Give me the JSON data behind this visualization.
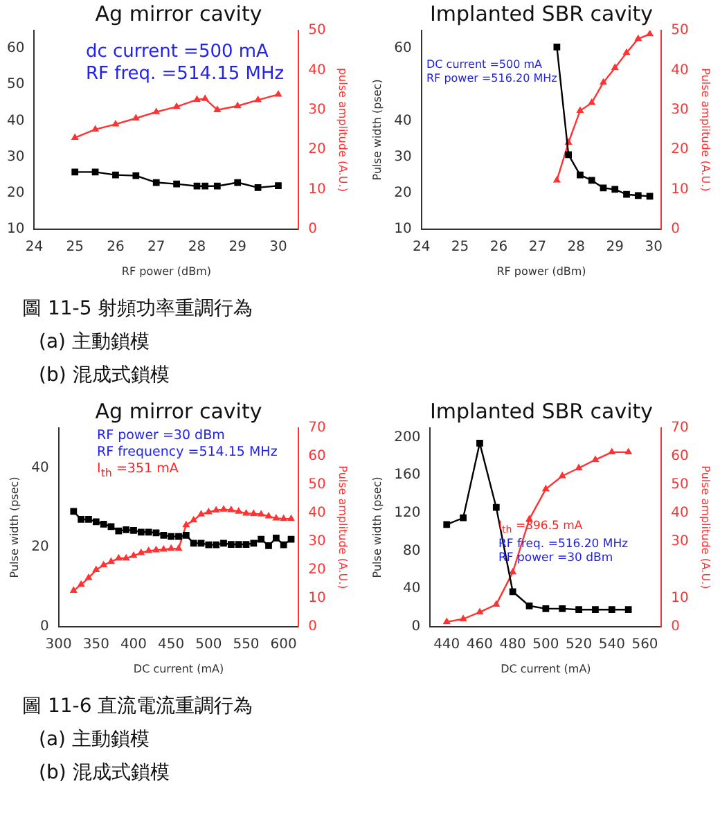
{
  "chart_data": [
    {
      "type": "line",
      "title": "Ag mirror cavity",
      "xlabel": "RF power (dBm)",
      "y2label": "pulse amplitude (A.U.)",
      "x": [
        25,
        25.5,
        26,
        26.5,
        27,
        27.5,
        28,
        28.2,
        28.5,
        29,
        29.5,
        30
      ],
      "series": [
        {
          "color": "#000000",
          "marker": "square",
          "values": [
            25.8,
            25.8,
            25.0,
            24.8,
            22.9,
            22.5,
            21.9,
            21.9,
            21.9,
            22.9,
            21.5,
            22.0
          ]
        },
        {
          "color": "#ff3333",
          "marker": "triangle",
          "axis": "y2",
          "values": [
            23.0,
            25.1,
            26.4,
            27.9,
            29.5,
            30.8,
            32.6,
            32.8,
            30.0,
            31.0,
            32.5,
            33.9
          ]
        }
      ],
      "xlim": [
        24,
        30.5
      ],
      "xticks": [
        24,
        25,
        26,
        27,
        28,
        29,
        30
      ],
      "ylim": [
        10,
        65
      ],
      "yticks": [
        10,
        20,
        30,
        40,
        50,
        60
      ],
      "y2lim": [
        0,
        50
      ],
      "y2ticks": [
        0,
        10,
        20,
        30,
        40,
        50
      ],
      "annotations": [
        "dc current =500 mA",
        "RF freq. =514.15 MHz"
      ],
      "legend": false
    },
    {
      "type": "line",
      "title": "Implanted SBR cavity",
      "xlabel": "RF power (dBm)",
      "ylabel": "Pulse width (psec)",
      "y2label": "Pulse amplitude (A.U.)",
      "x": [
        27.5,
        27.8,
        28.1,
        28.4,
        28.7,
        29,
        29.3,
        29.6,
        29.9
      ],
      "series": [
        {
          "color": "#000000",
          "marker": "square",
          "values": [
            60.4,
            30.6,
            25.0,
            23.5,
            21.4,
            21.0,
            19.6,
            19.3,
            19.1
          ]
        },
        {
          "color": "#ff3333",
          "marker": "triangle",
          "axis": "y2",
          "values": [
            12.3,
            21.8,
            29.8,
            31.8,
            36.9,
            40.6,
            44.4,
            47.9,
            49.1
          ]
        }
      ],
      "xlim": [
        24,
        30.2
      ],
      "xticks": [
        24,
        25,
        26,
        27,
        28,
        29,
        30
      ],
      "ylim": [
        10,
        65
      ],
      "yticks": [
        10,
        20,
        30,
        40,
        60
      ],
      "y2lim": [
        0,
        50
      ],
      "y2ticks": [
        0,
        10,
        20,
        30,
        40,
        50
      ],
      "annotations": [
        "DC current =500 mA",
        "RF power =516.20 MHz"
      ],
      "legend": false
    },
    {
      "type": "other",
      "annotations": [
        "圖 11-5 射頻功率重調行為",
        "(a) 主動鎖模",
        "(b) 混成式鎖模"
      ]
    },
    {
      "type": "line",
      "title": "Ag mirror cavity",
      "xlabel": "DC current (mA)",
      "ylabel": "Pulse width (psec)",
      "y2label": "Pulse amplitude (A.U.)",
      "x": [
        320,
        330,
        340,
        350,
        360,
        370,
        380,
        390,
        400,
        410,
        420,
        430,
        440,
        450,
        460,
        470,
        480,
        490,
        500,
        510,
        520,
        530,
        540,
        550,
        560,
        570,
        580,
        590,
        600,
        610
      ],
      "series": [
        {
          "color": "#000000",
          "marker": "square",
          "values": [
            29,
            27,
            27,
            26.4,
            25.8,
            25.2,
            24.1,
            24.4,
            24.2,
            23.8,
            23.8,
            23.6,
            23,
            22.7,
            22.7,
            23,
            21,
            21,
            20.6,
            20.6,
            21,
            20.7,
            20.7,
            20.7,
            21,
            22,
            20.4,
            22.3,
            20.6,
            22
          ]
        },
        {
          "color": "#ff3333",
          "marker": "triangle",
          "axis": "y2",
          "values": [
            12.7,
            14.8,
            17.2,
            20,
            21.7,
            22.9,
            24.1,
            24.1,
            25,
            26,
            26.7,
            27,
            27.2,
            27.5,
            27.5,
            35.8,
            37.5,
            39.6,
            40.4,
            41,
            41.3,
            41.1,
            40.6,
            39.9,
            39.8,
            39.6,
            38.9,
            38.2,
            38,
            38
          ]
        }
      ],
      "xlim": [
        300,
        620
      ],
      "xticks": [
        300,
        350,
        400,
        450,
        500,
        550,
        600
      ],
      "ylim": [
        0,
        50
      ],
      "yticks": [
        0,
        20,
        40
      ],
      "y2lim": [
        0,
        70
      ],
      "y2ticks": [
        0,
        10,
        20,
        30,
        40,
        50,
        60,
        70
      ],
      "annotations": [
        "RF power =30 dBm",
        "RF frequency =514.15 MHz",
        "I$_{th}$ =351 mA"
      ],
      "legend": false
    },
    {
      "type": "line",
      "title": "Implanted SBR cavity",
      "xlabel": "DC current (mA)",
      "ylabel": "Pulse width (psec)",
      "y2label": "Pulse amplitude (A.U.)",
      "x": [
        440,
        450,
        460,
        470,
        480,
        490,
        500,
        510,
        520,
        530,
        540,
        550
      ],
      "series": [
        {
          "color": "#000000",
          "marker": "square",
          "values": [
            108,
            115,
            194,
            126,
            37,
            22,
            19,
            19,
            18,
            18,
            18,
            18
          ]
        },
        {
          "color": "#ff3333",
          "marker": "triangle",
          "axis": "y2",
          "values": [
            1.7,
            2.7,
            5.1,
            7.8,
            19.2,
            37.8,
            48.5,
            53.1,
            55.9,
            58.8,
            61.5,
            61.5
          ]
        }
      ],
      "xlim": [
        430,
        570
      ],
      "xticks": [
        440,
        460,
        480,
        500,
        520,
        540,
        560
      ],
      "ylim": [
        0,
        210
      ],
      "yticks": [
        0,
        40,
        80,
        120,
        160,
        200
      ],
      "y2lim": [
        0,
        70
      ],
      "y2ticks": [
        0,
        10,
        30,
        40,
        50,
        60,
        70
      ],
      "annotations": [
        "I$_{th}$ =396.5 mA",
        "RF freq. =516.20 MHz",
        "RF power =30 dBm"
      ],
      "legend": false
    },
    {
      "type": "other",
      "annotations": [
        "圖 11-6 直流電流重調行為",
        "(a) 主動鎖模",
        "(b) 混成式鎖模"
      ]
    }
  ]
}
